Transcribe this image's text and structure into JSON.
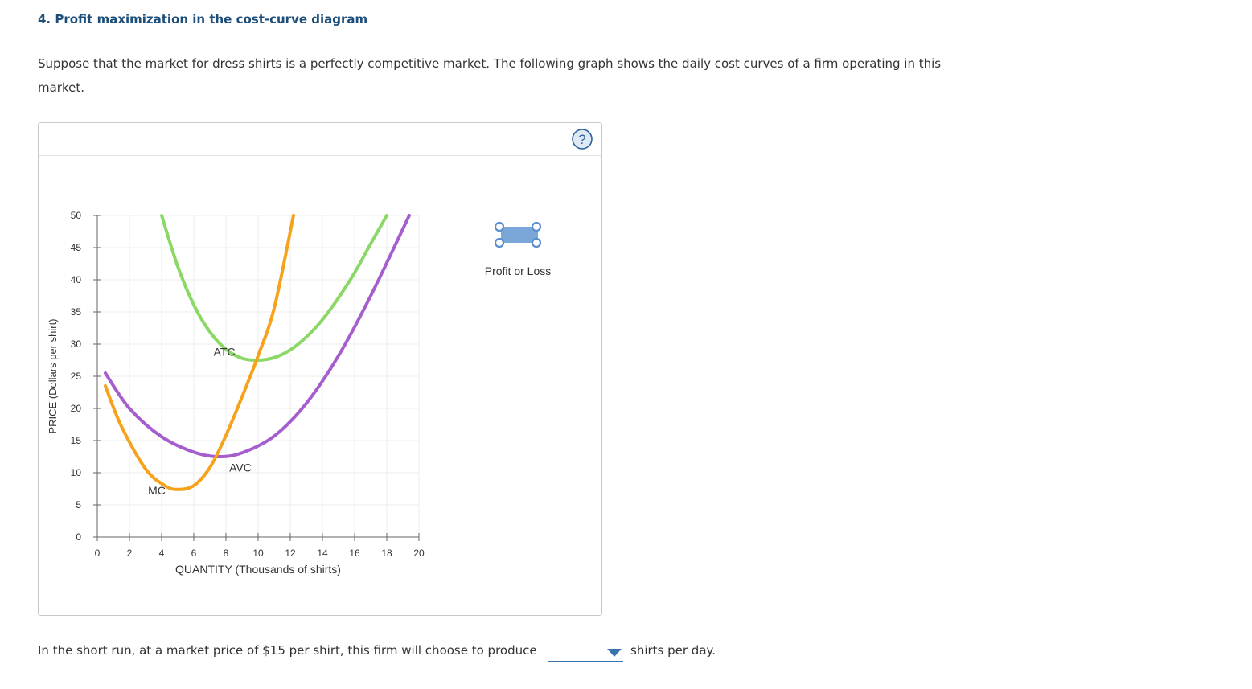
{
  "header": {
    "title": "4. Profit maximization in the cost-curve diagram",
    "intro": "Suppose that the market for dress shirts is a perfectly competitive market. The following graph shows the daily cost curves of a firm operating in this market."
  },
  "panel": {
    "help_symbol": "?",
    "tool_label": "Profit or Loss",
    "tool_color": "#7ba7d8"
  },
  "chart_data": {
    "type": "line",
    "xlabel": "QUANTITY (Thousands of shirts)",
    "ylabel": "PRICE (Dollars per shirt)",
    "xlim": [
      0,
      20
    ],
    "ylim": [
      0,
      50
    ],
    "xticks": [
      "0",
      "2",
      "4",
      "6",
      "8",
      "10",
      "12",
      "14",
      "16",
      "18",
      "20"
    ],
    "yticks": [
      "0",
      "5",
      "10",
      "15",
      "20",
      "25",
      "30",
      "35",
      "40",
      "45",
      "50"
    ],
    "grid": true,
    "series": [
      {
        "name": "ATC",
        "color": "#8cd867",
        "x": [
          4,
          5,
          6,
          7,
          8,
          9,
          10,
          11,
          12,
          13,
          14,
          15,
          16,
          17,
          18
        ],
        "y": [
          50,
          42.1,
          36.1,
          31.9,
          29.2,
          27.8,
          27.5,
          27.9,
          29.1,
          31.1,
          33.8,
          37.2,
          41.1,
          45.6,
          50
        ]
      },
      {
        "name": "AVC",
        "color": "#a65dcd",
        "x": [
          0.5,
          2,
          4,
          6,
          7.5,
          9,
          11,
          13,
          15,
          17,
          19.4
        ],
        "y": [
          25.5,
          20,
          15.6,
          13.2,
          12.5,
          13.1,
          15.7,
          20.8,
          28.2,
          37.5,
          50
        ]
      },
      {
        "name": "MC",
        "color": "#f7a21b",
        "x": [
          0.5,
          1.5,
          3,
          4.2,
          5,
          6,
          7,
          8,
          9,
          10,
          11,
          12.2
        ],
        "y": [
          23.5,
          17.2,
          10.6,
          8,
          7.4,
          8,
          10.8,
          15.8,
          21.8,
          28.2,
          35.6,
          50
        ]
      }
    ]
  },
  "question": {
    "prefix": "In the short run, at a market price of $15 per shirt, this firm will choose to produce",
    "selected": "",
    "suffix": "shirts per day."
  }
}
